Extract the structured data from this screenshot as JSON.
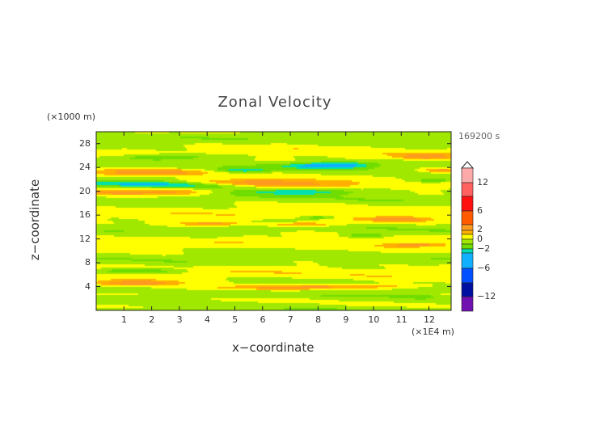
{
  "chart_data": {
    "type": "heatmap",
    "title": "Zonal Velocity",
    "xlabel": "x−coordinate",
    "ylabel": "z−coordinate",
    "x_unit": "(×1E4 m)",
    "y_unit": "(×1000 m)",
    "time_label": "169200 s",
    "xlim": [
      0,
      12.8
    ],
    "ylim": [
      0,
      30
    ],
    "x_ticks": [
      "1",
      "2",
      "3",
      "4",
      "5",
      "6",
      "7",
      "8",
      "9",
      "10",
      "11",
      "12"
    ],
    "y_ticks": [
      "4",
      "8",
      "12",
      "16",
      "20",
      "24",
      "28"
    ],
    "colorbar": {
      "labels": [
        "12",
        "6",
        "2",
        "0",
        "−2",
        "−6",
        "−12"
      ],
      "label_values": [
        12,
        6,
        2,
        0,
        -2,
        -6,
        -12
      ],
      "levels": [
        14,
        12,
        9,
        6,
        4,
        2,
        1,
        0,
        -1,
        -2,
        -3,
        -6,
        -9,
        -12,
        -14
      ],
      "colors": [
        "#ffaaaa",
        "#ff6060",
        "#ff1010",
        "#ff5a00",
        "#ff9a20",
        "#ffb000",
        "#ffff00",
        "#a0e800",
        "#70dd00",
        "#00e0b0",
        "#10b0ff",
        "#0050ff",
        "#0010a0",
        "#7010b0",
        "#ff10b0"
      ]
    }
  }
}
